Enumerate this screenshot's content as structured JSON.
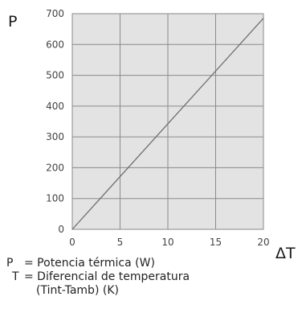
{
  "chart_data": {
    "type": "line",
    "ylabel": "P",
    "xlabel": "ΔT",
    "xlim": [
      0,
      20
    ],
    "ylim": [
      0,
      700
    ],
    "x_ticks": [
      "0",
      "5",
      "10",
      "15",
      "20"
    ],
    "y_ticks": [
      "0",
      "100",
      "200",
      "300",
      "400",
      "500",
      "600",
      "700"
    ],
    "grid": true,
    "plot_background": "#e3e3e3",
    "grid_color": "#8a8a8a",
    "line_color": "#6f6f6f",
    "series": [
      {
        "x": [
          0,
          20
        ],
        "values": [
          0,
          685
        ]
      }
    ]
  },
  "legend": {
    "p_symbol": "P",
    "p_desc": "= Potencia térmica (W)",
    "t_symbol": "T",
    "t_desc": "= Diferencial de temperatura",
    "t_desc_cont": "(Tint-Tamb) (K)"
  }
}
